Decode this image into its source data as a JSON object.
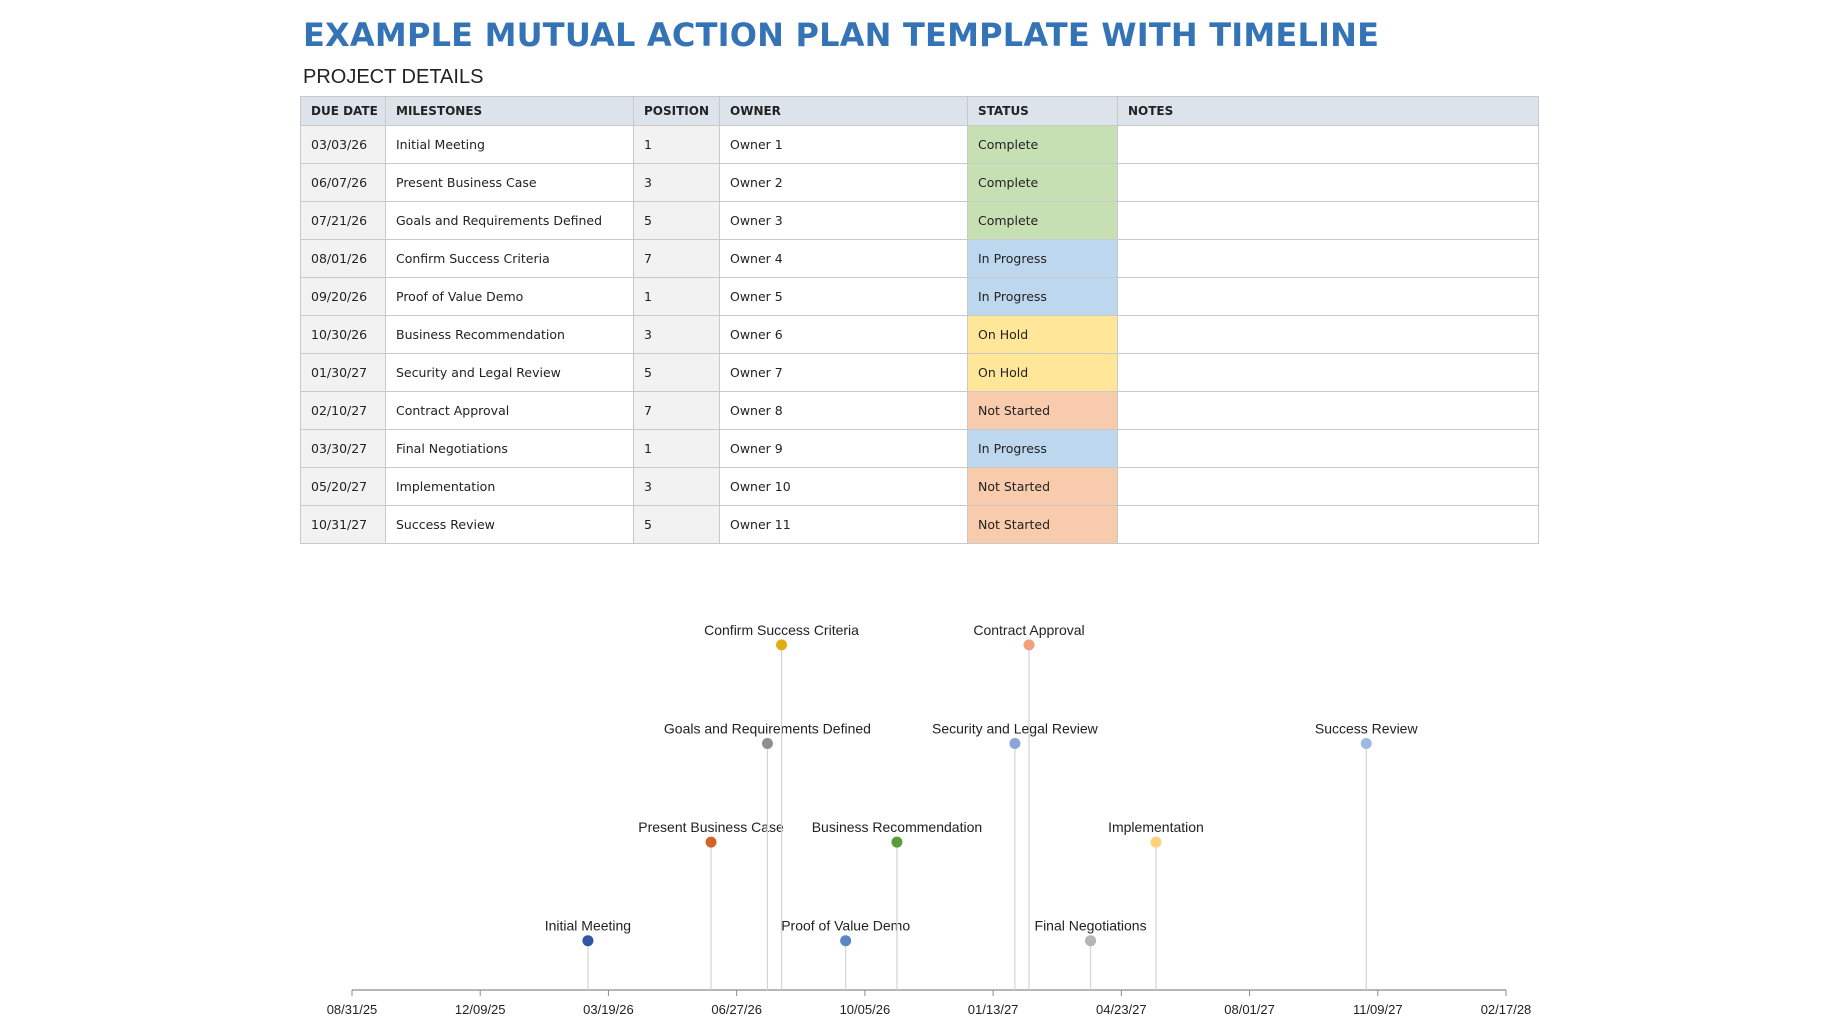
{
  "title": "EXAMPLE MUTUAL ACTION PLAN TEMPLATE WITH TIMELINE",
  "subtitle": "PROJECT DETAILS",
  "table": {
    "headers": [
      "DUE DATE",
      "MILESTONES",
      "POSITION",
      "OWNER",
      "STATUS",
      "NOTES"
    ],
    "rows": [
      {
        "due": "03/03/26",
        "milestone": "Initial Meeting",
        "position": "1",
        "owner": "Owner 1",
        "status": "Complete",
        "notes": ""
      },
      {
        "due": "06/07/26",
        "milestone": "Present Business Case",
        "position": "3",
        "owner": "Owner 2",
        "status": "Complete",
        "notes": ""
      },
      {
        "due": "07/21/26",
        "milestone": "Goals and Requirements Defined",
        "position": "5",
        "owner": "Owner 3",
        "status": "Complete",
        "notes": ""
      },
      {
        "due": "08/01/26",
        "milestone": "Confirm Success Criteria",
        "position": "7",
        "owner": "Owner 4",
        "status": "In Progress",
        "notes": ""
      },
      {
        "due": "09/20/26",
        "milestone": "Proof of Value Demo",
        "position": "1",
        "owner": "Owner 5",
        "status": "In Progress",
        "notes": ""
      },
      {
        "due": "10/30/26",
        "milestone": "Business Recommendation",
        "position": "3",
        "owner": "Owner 6",
        "status": "On Hold",
        "notes": ""
      },
      {
        "due": "01/30/27",
        "milestone": "Security and Legal Review",
        "position": "5",
        "owner": "Owner 7",
        "status": "On Hold",
        "notes": ""
      },
      {
        "due": "02/10/27",
        "milestone": "Contract Approval",
        "position": "7",
        "owner": "Owner 8",
        "status": "Not Started",
        "notes": ""
      },
      {
        "due": "03/30/27",
        "milestone": "Final Negotiations",
        "position": "1",
        "owner": "Owner 9",
        "status": "In Progress",
        "notes": ""
      },
      {
        "due": "05/20/27",
        "milestone": "Implementation",
        "position": "3",
        "owner": "Owner 10",
        "status": "Not Started",
        "notes": ""
      },
      {
        "due": "10/31/27",
        "milestone": "Success Review",
        "position": "5",
        "owner": "Owner 11",
        "status": "Not Started",
        "notes": ""
      }
    ]
  },
  "status_colors": {
    "Complete": "#c6e0b4",
    "In Progress": "#bdd7ee",
    "On Hold": "#ffe699",
    "Not Started": "#f8cbad"
  },
  "chart_data": {
    "type": "scatter",
    "title": "",
    "xlabel": "",
    "ylabel": "",
    "x_axis": "date",
    "xlim": [
      "08/31/25",
      "02/17/28"
    ],
    "ylim": [
      0,
      8
    ],
    "x_tick_labels": [
      "08/31/25",
      "12/09/25",
      "03/19/26",
      "06/27/26",
      "10/05/26",
      "01/13/27",
      "04/23/27",
      "08/01/27",
      "11/09/27",
      "02/17/28"
    ],
    "points": [
      {
        "label": "Initial Meeting",
        "date": "03/03/26",
        "position": 1,
        "color": "#2f55a4"
      },
      {
        "label": "Present Business Case",
        "date": "06/07/26",
        "position": 3,
        "color": "#d0652a"
      },
      {
        "label": "Goals and Requirements Defined",
        "date": "07/21/26",
        "position": 5,
        "color": "#8f8f8f"
      },
      {
        "label": "Confirm Success Criteria",
        "date": "08/01/26",
        "position": 7,
        "color": "#e3ac12"
      },
      {
        "label": "Proof of Value Demo",
        "date": "09/20/26",
        "position": 1,
        "color": "#5b86c5"
      },
      {
        "label": "Business Recommendation",
        "date": "10/30/26",
        "position": 3,
        "color": "#5a9b3c"
      },
      {
        "label": "Security and Legal Review",
        "date": "01/30/27",
        "position": 5,
        "color": "#8aa4d6"
      },
      {
        "label": "Contract Approval",
        "date": "02/10/27",
        "position": 7,
        "color": "#f2a07b"
      },
      {
        "label": "Final Negotiations",
        "date": "03/30/27",
        "position": 1,
        "color": "#b5b5b5"
      },
      {
        "label": "Implementation",
        "date": "05/20/27",
        "position": 3,
        "color": "#ffd27a"
      },
      {
        "label": "Success Review",
        "date": "10/31/27",
        "position": 5,
        "color": "#9fb8e0"
      }
    ],
    "grid": false,
    "legend": "none"
  }
}
